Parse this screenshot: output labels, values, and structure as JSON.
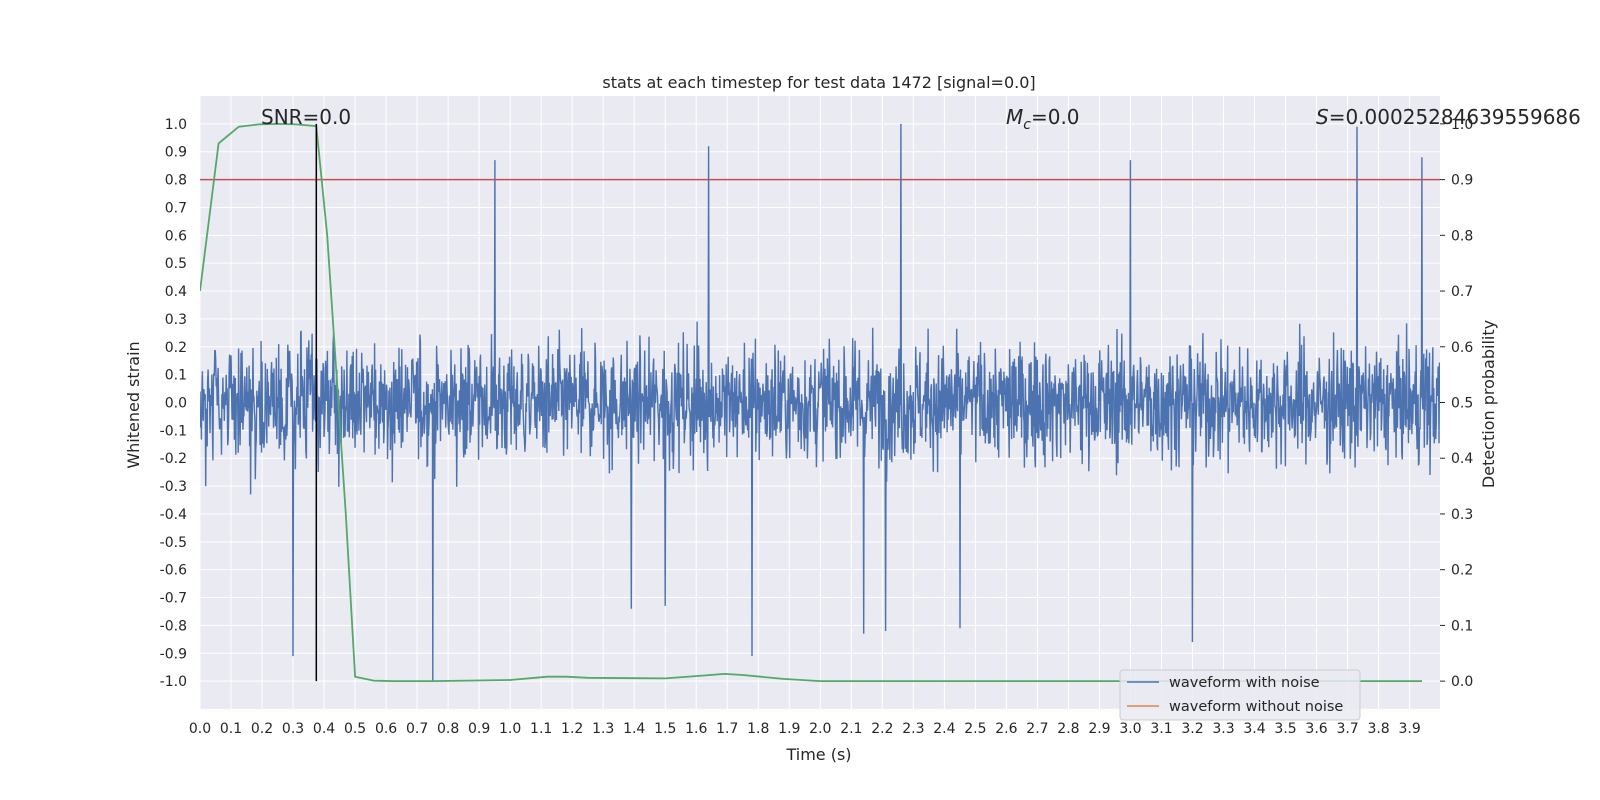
{
  "chart_data": {
    "type": "line",
    "title": "stats at each timestep for test data 1472 [signal=0.0]",
    "xlabel": "Time (s)",
    "ylabel": "Whitened strain",
    "y2label": "Detection probability",
    "xlim": [
      0.0,
      3.998
    ],
    "ylim": [
      -1.1,
      1.1
    ],
    "y2lim": [
      -0.05,
      1.05
    ],
    "x_ticks": [
      "0.0",
      "0.1",
      "0.2",
      "0.3",
      "0.4",
      "0.5",
      "0.6",
      "0.7",
      "0.8",
      "0.9",
      "1.0",
      "1.1",
      "1.2",
      "1.3",
      "1.4",
      "1.5",
      "1.6",
      "1.7",
      "1.8",
      "1.9",
      "2.0",
      "2.1",
      "2.2",
      "2.3",
      "2.4",
      "2.5",
      "2.6",
      "2.7",
      "2.8",
      "2.9",
      "3.0",
      "3.1",
      "3.2",
      "3.3",
      "3.4",
      "3.5",
      "3.6",
      "3.7",
      "3.8",
      "3.9"
    ],
    "y_ticks": [
      "1.0",
      "0.9",
      "0.8",
      "0.7",
      "0.6",
      "0.5",
      "0.4",
      "0.3",
      "0.2",
      "0.1",
      "0.0",
      "-0.1",
      "-0.2",
      "-0.3",
      "-0.4",
      "-0.5",
      "-0.6",
      "-0.7",
      "-0.8",
      "-0.9",
      "-1.0"
    ],
    "y2_ticks": [
      "1.0",
      "0.9",
      "0.8",
      "0.7",
      "0.6",
      "0.5",
      "0.4",
      "0.3",
      "0.2",
      "0.1",
      "0.0"
    ],
    "annotations": {
      "snr": "SNR=0.0",
      "mc_sym": "M",
      "mc_sub": "c",
      "mc_val": "=0.0",
      "s_sym": "S",
      "s_val": "=0.00025284639559686"
    },
    "threshold": {
      "y2": 0.9,
      "color": "#c44e52"
    },
    "marker_line": {
      "x": 0.375,
      "y2_range": [
        0.0,
        1.0
      ],
      "color": "#000000"
    },
    "noise_series": {
      "name": "waveform with noise",
      "color": "#4c72b0",
      "typical_amplitude": 0.4,
      "sample_peaks": [
        {
          "x": 0.95,
          "y": 0.87
        },
        {
          "x": 1.64,
          "y": 0.92
        },
        {
          "x": 2.26,
          "y": 1.0
        },
        {
          "x": 3.0,
          "y": 0.87
        },
        {
          "x": 3.73,
          "y": 0.99
        },
        {
          "x": 3.94,
          "y": 0.88
        },
        {
          "x": 0.75,
          "y": -1.0
        },
        {
          "x": 0.3,
          "y": -0.91
        },
        {
          "x": 1.78,
          "y": -0.91
        },
        {
          "x": 3.2,
          "y": -0.86
        },
        {
          "x": 2.14,
          "y": -0.83
        },
        {
          "x": 2.21,
          "y": -0.82
        },
        {
          "x": 2.45,
          "y": -0.81
        },
        {
          "x": 1.39,
          "y": -0.74
        },
        {
          "x": 1.5,
          "y": -0.73
        }
      ]
    },
    "clean_series": {
      "name": "waveform without noise",
      "color": "#dd8452"
    },
    "probability_series": {
      "color": "#55a868",
      "x": [
        0.0,
        0.06,
        0.125,
        0.19,
        0.25,
        0.31,
        0.375,
        0.41,
        0.44,
        0.47,
        0.5,
        0.56,
        0.62,
        0.75,
        1.0,
        1.12,
        1.18,
        1.25,
        1.5,
        1.62,
        1.69,
        1.75,
        1.88,
        2.0,
        2.5,
        3.0,
        3.5,
        3.94
      ],
      "y2": [
        0.7,
        0.965,
        0.995,
        0.999,
        1.0,
        0.999,
        0.996,
        0.8,
        0.55,
        0.3,
        0.008,
        0.001,
        0.0,
        0.0,
        0.002,
        0.008,
        0.008,
        0.006,
        0.005,
        0.01,
        0.013,
        0.011,
        0.004,
        0.0,
        0.0,
        0.0,
        0.0,
        0.0
      ]
    },
    "legend": {
      "placement": "lower-right",
      "entries": [
        "waveform with noise",
        "waveform without noise"
      ]
    },
    "grid": true
  }
}
